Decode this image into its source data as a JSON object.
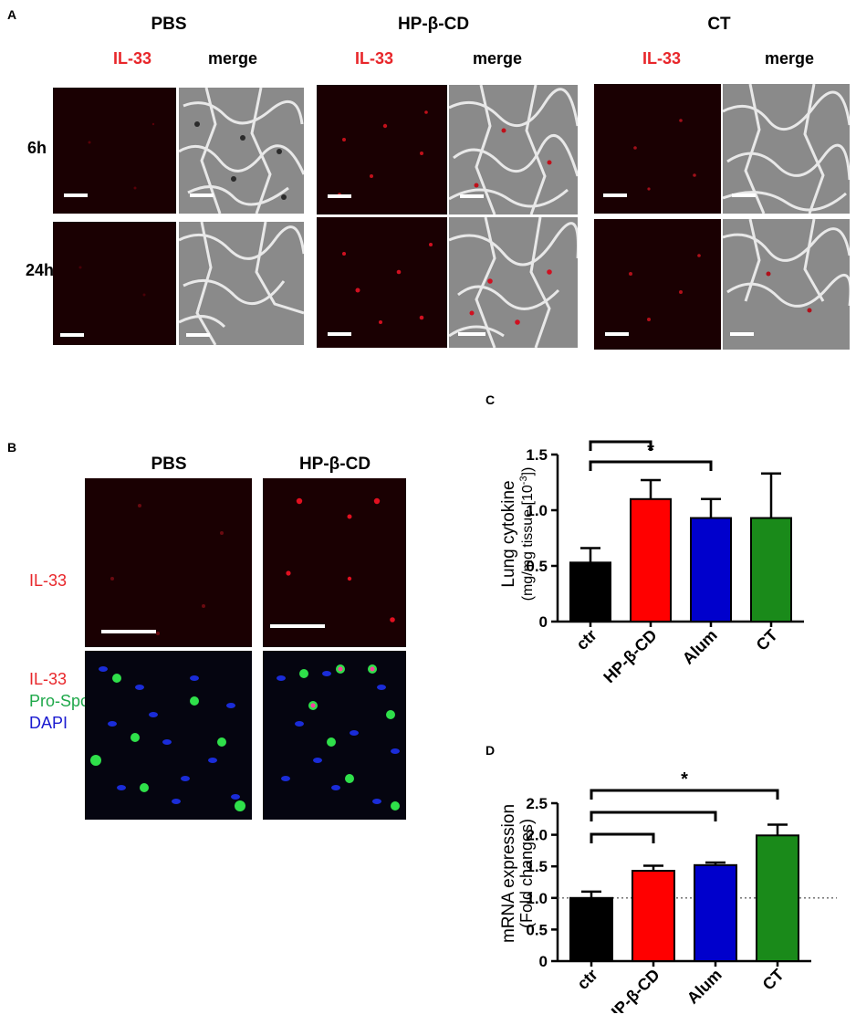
{
  "panelA": {
    "letter": "A",
    "groups": [
      {
        "title": "PBS",
        "il33_label": "IL-33",
        "merge_label": "merge"
      },
      {
        "title": "HP-β-CD",
        "il33_label": "IL-33",
        "merge_label": "merge"
      },
      {
        "title": "CT",
        "il33_label": "IL-33",
        "merge_label": "merge"
      }
    ],
    "rows": [
      "6h",
      "24h"
    ]
  },
  "panelB": {
    "letter": "B",
    "columns": [
      "PBS",
      "HP-β-CD"
    ],
    "row1_label": "IL-33",
    "row2_labels": [
      "IL-33",
      "Pro-Spc",
      "DAPI"
    ]
  },
  "colors": {
    "red_label": "#e8262a",
    "green_label": "#1fa84a",
    "blue_label": "#1a1ad0",
    "bar_ctr": "#000000",
    "bar_hpbcd": "#ff0000",
    "bar_alum": "#0000cc",
    "bar_ct": "#1a8a1a"
  },
  "chart_data": [
    {
      "panel": "C",
      "type": "bar",
      "categories": [
        "ctr",
        "HP-β-CD",
        "Alum",
        "CT"
      ],
      "values": [
        0.53,
        1.1,
        0.93,
        0.93
      ],
      "errors": [
        0.13,
        0.17,
        0.17,
        0.4
      ],
      "ylabel_line1": "Lung cytokine",
      "ylabel_line2": "(mg/mg tissue [10",
      "ylabel_sup": "-3",
      "ylabel_end": "])",
      "ylim": [
        0,
        1.5
      ],
      "yticks": [
        "0",
        "0.5",
        "1.0",
        "1.5"
      ],
      "significance": "*",
      "brackets": [
        [
          0,
          1
        ],
        [
          0,
          2
        ]
      ],
      "star_over_bracket": 1,
      "reference_line": null
    },
    {
      "panel": "D",
      "type": "bar",
      "categories": [
        "ctr",
        "HP-β-CD",
        "Alum",
        "CT"
      ],
      "values": [
        1.0,
        1.43,
        1.52,
        1.99
      ],
      "errors": [
        0.1,
        0.08,
        0.04,
        0.17
      ],
      "ylabel_line1": "mRNA expression",
      "ylabel_line2": "(Fold changes)",
      "ylabel_sup": "",
      "ylabel_end": "",
      "ylim": [
        0,
        2.5
      ],
      "yticks": [
        "0",
        "0.5",
        "1.0",
        "1.5",
        "2.0",
        "2.5"
      ],
      "significance": "*",
      "brackets": [
        [
          0,
          3
        ],
        [
          0,
          2
        ],
        [
          0,
          1
        ]
      ],
      "star_over_bracket": 0,
      "reference_line": 1.0
    }
  ]
}
